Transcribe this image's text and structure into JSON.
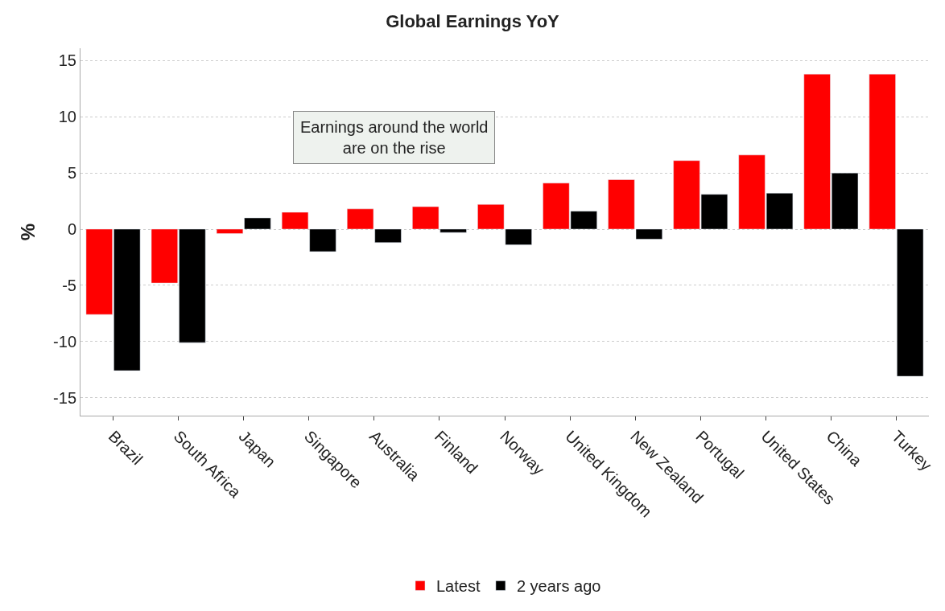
{
  "chart_data": {
    "type": "bar",
    "title": "Global Earnings YoY",
    "ylabel": "%",
    "categories": [
      "Brazil",
      "South Africa",
      "Japan",
      "Singapore",
      "Australia",
      "Finland",
      "Norway",
      "United Kingdom",
      "New Zealand",
      "Portugal",
      "United States",
      "China",
      "Turkey"
    ],
    "series": [
      {
        "name": "Latest",
        "color": "#ff0000",
        "values": [
          -7.6,
          -4.8,
          -0.4,
          1.5,
          1.8,
          2.0,
          2.2,
          4.1,
          4.4,
          6.1,
          6.6,
          13.8,
          13.8
        ]
      },
      {
        "name": "2 years ago",
        "color": "#000000",
        "values": [
          -12.6,
          -10.1,
          1.0,
          -2.0,
          -1.2,
          -0.3,
          -1.4,
          1.6,
          -0.9,
          3.1,
          3.2,
          5.0,
          -13.1
        ]
      }
    ],
    "ylim": [
      -16.6,
      16.1
    ],
    "yticks": [
      -15,
      -10,
      -5,
      0,
      5,
      10,
      15
    ],
    "grid": "y",
    "legend": "bottom",
    "annotations": [
      "Earnings around the world\nare on the rise"
    ]
  }
}
